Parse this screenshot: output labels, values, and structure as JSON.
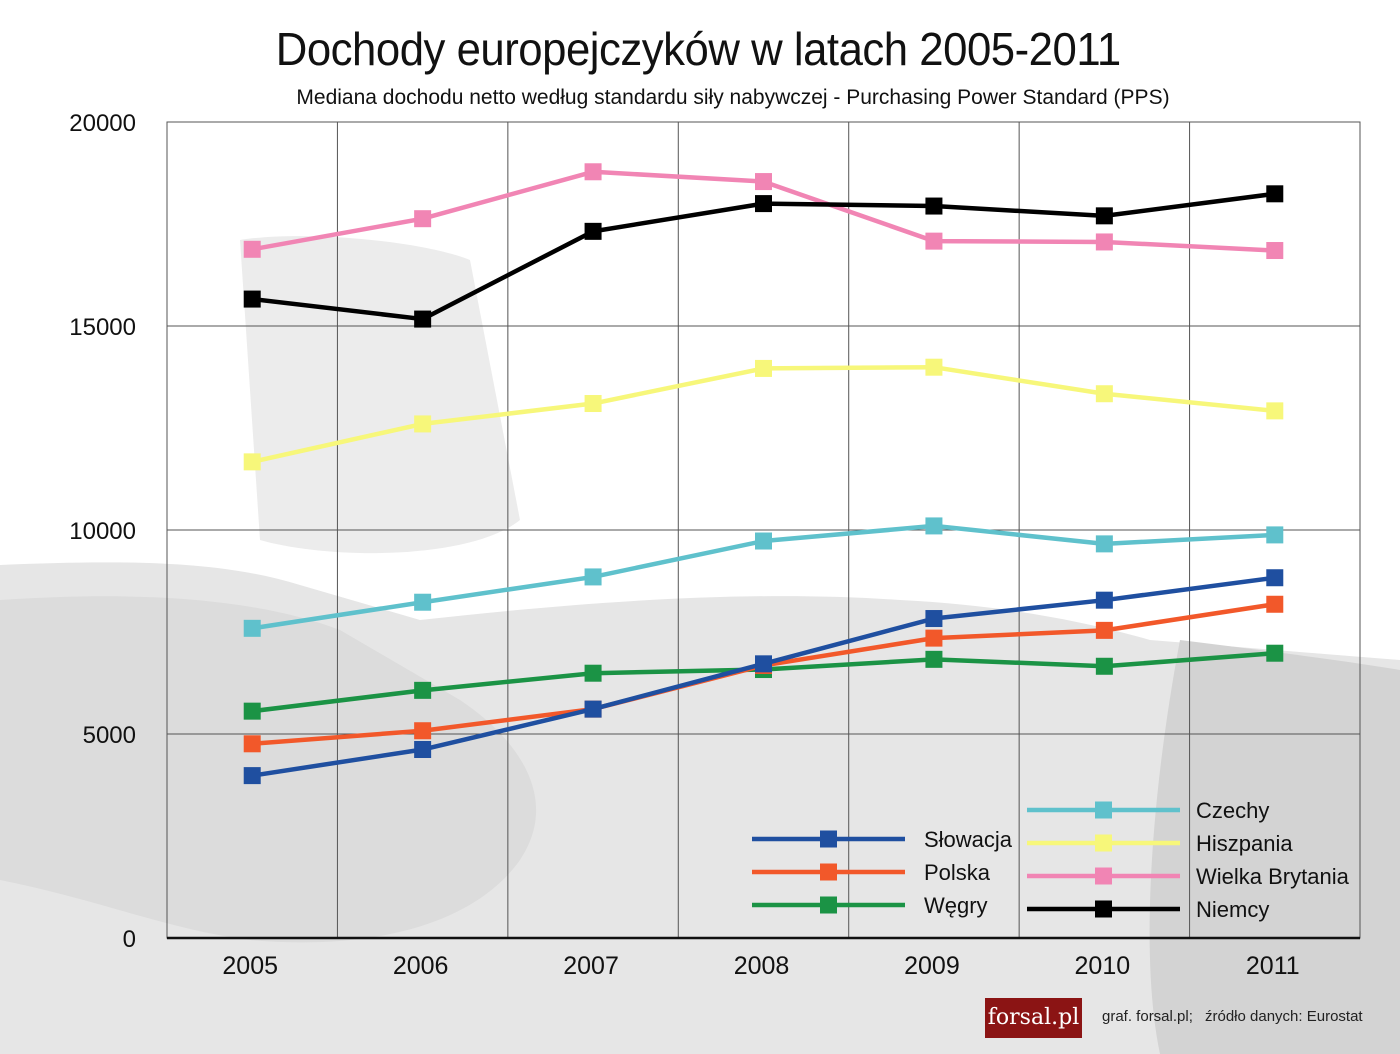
{
  "chart_data": {
    "type": "line",
    "title": "Dochody europejczyków w latach 2005-2011",
    "subtitle": "Mediana dochodu netto według standardu siły nabywczej - Purchasing Power Standard (PPS)",
    "x": [
      "2005",
      "2006",
      "2007",
      "2008",
      "2009",
      "2010",
      "2011"
    ],
    "ylim": [
      0,
      20000
    ],
    "yticks": [
      "0",
      "5000",
      "10000",
      "15000",
      "20000"
    ],
    "grid": true,
    "legend_position": "bottom-right",
    "series": [
      {
        "name": "Słowacja",
        "color": "#1f4fa0",
        "values": [
          3980,
          4620,
          5610,
          6720,
          7830,
          8280,
          8830
        ]
      },
      {
        "name": "Polska",
        "color": "#f2582a",
        "values": [
          4760,
          5080,
          5610,
          6680,
          7350,
          7540,
          8180
        ]
      },
      {
        "name": "Węgry",
        "color": "#1b9345",
        "values": [
          5560,
          6070,
          6490,
          6580,
          6830,
          6660,
          6980
        ]
      },
      {
        "name": "Czechy",
        "color": "#5fc1cc",
        "values": [
          7590,
          8230,
          8850,
          9730,
          10100,
          9660,
          9880
        ]
      },
      {
        "name": "Hiszpania",
        "color": "#f7f77a",
        "values": [
          11670,
          12600,
          13100,
          13960,
          13990,
          13340,
          12920
        ]
      },
      {
        "name": "Wielka Brytania",
        "color": "#f185b4",
        "values": [
          16880,
          17630,
          18780,
          18540,
          17080,
          17060,
          16850
        ]
      },
      {
        "name": "Niemcy",
        "color": "#000000",
        "values": [
          15660,
          15170,
          17320,
          18000,
          17940,
          17700,
          18240
        ]
      }
    ]
  },
  "footer": {
    "logo_text": "forsal.pl",
    "credit": "graf. forsal.pl;",
    "source": "źródło danych: Eurostat"
  }
}
